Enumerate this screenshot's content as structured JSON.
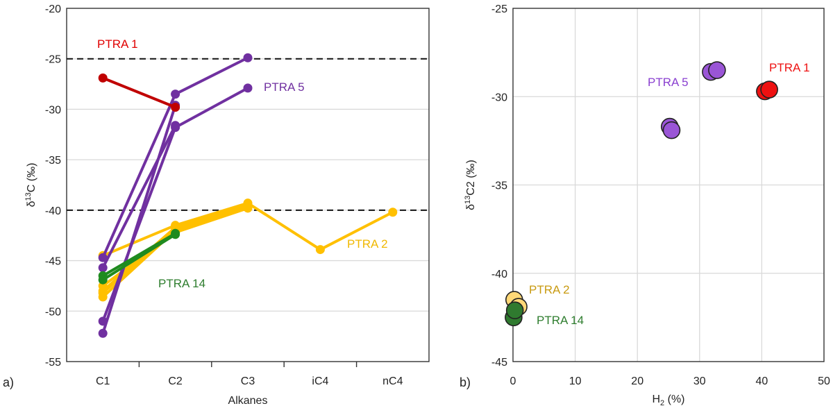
{
  "chart_data": [
    {
      "type": "line",
      "panel_label": "a)",
      "xlabel": "Alkanes",
      "ylabel": "δ13C (‰)",
      "categories": [
        "C1",
        "C2",
        "C3",
        "iC4",
        "nC4"
      ],
      "ylim": [
        -55,
        -20
      ],
      "yticks": [
        -55,
        -50,
        -45,
        -40,
        -35,
        -30,
        -25,
        -20
      ],
      "ytick_labels": [
        "-55",
        "-50",
        "-45",
        "-40",
        "-35",
        "-30",
        "-25",
        "-20"
      ],
      "grid": true,
      "reference_lines": [
        -25,
        -40
      ],
      "series": [
        {
          "name": "PTRA 1",
          "color": "#c00000",
          "lines": [
            [
              -26.9,
              -29.8
            ]
          ]
        },
        {
          "name": "PTRA 5",
          "color": "#7030a0",
          "lines": [
            [
              -44.7,
              -28.5,
              -24.9
            ],
            [
              -51.0,
              -31.8,
              -27.9
            ],
            [
              -52.2,
              -29.6
            ],
            [
              -45.7,
              -31.6
            ]
          ]
        },
        {
          "name": "PTRA 2",
          "color": "#ffc000",
          "lines": [
            [
              -44.5,
              -41.5,
              -39.3,
              -43.9,
              -40.2
            ],
            [
              -48.2,
              -41.8,
              -39.4
            ],
            [
              -48.6,
              -42.0,
              -39.6
            ],
            [
              -47.5,
              -42.2,
              -39.8
            ],
            [
              -48.0,
              -41.7,
              -39.5
            ]
          ]
        },
        {
          "name": "PTRA 14",
          "color": "#1f8b1f",
          "lines": [
            [
              -46.5,
              -42.3
            ],
            [
              -46.9,
              -42.4
            ]
          ]
        }
      ],
      "annotations": [
        {
          "text": "PTRA 1",
          "color": "#e00000"
        },
        {
          "text": "PTRA 5",
          "color": "#7030a0"
        },
        {
          "text": "PTRA 2",
          "color": "#f0b800"
        },
        {
          "text": "PTRA 14",
          "color": "#2e7d2e"
        }
      ]
    },
    {
      "type": "scatter",
      "panel_label": "b)",
      "xlabel": "H2 (%)",
      "ylabel": "δ13C2 (‰)",
      "xlim": [
        0,
        50
      ],
      "ylim": [
        -45,
        -25
      ],
      "xticks": [
        0,
        10,
        20,
        30,
        40,
        50
      ],
      "xtick_labels": [
        "0",
        "10",
        "20",
        "30",
        "40",
        "50"
      ],
      "yticks": [
        -45,
        -40,
        -35,
        -30,
        -25
      ],
      "ytick_labels": [
        "-45",
        "-40",
        "-35",
        "-30",
        "-25"
      ],
      "grid": true,
      "series": [
        {
          "name": "PTRA 1",
          "color": "#ee1111",
          "points": [
            [
              40.5,
              -29.7
            ],
            [
              41.2,
              -29.6
            ]
          ]
        },
        {
          "name": "PTRA 5",
          "color": "#9a55d6",
          "points": [
            [
              31.8,
              -28.6
            ],
            [
              32.8,
              -28.5
            ],
            [
              25.2,
              -31.7
            ],
            [
              25.5,
              -31.9
            ]
          ]
        },
        {
          "name": "PTRA 2",
          "color": "#ffd877",
          "points": [
            [
              0.2,
              -41.5
            ],
            [
              0.9,
              -41.9
            ]
          ]
        },
        {
          "name": "PTRA 14",
          "color": "#2f7a2f",
          "points": [
            [
              0.1,
              -42.5
            ],
            [
              0.3,
              -42.1
            ]
          ]
        }
      ],
      "annotations": [
        {
          "text": "PTRA 1",
          "color": "#ee1111"
        },
        {
          "text": "PTRA 5",
          "color": "#8a3fd0"
        },
        {
          "text": "PTRA 2",
          "color": "#c89a10"
        },
        {
          "text": "PTRA 14",
          "color": "#2e7d2e"
        }
      ]
    }
  ]
}
